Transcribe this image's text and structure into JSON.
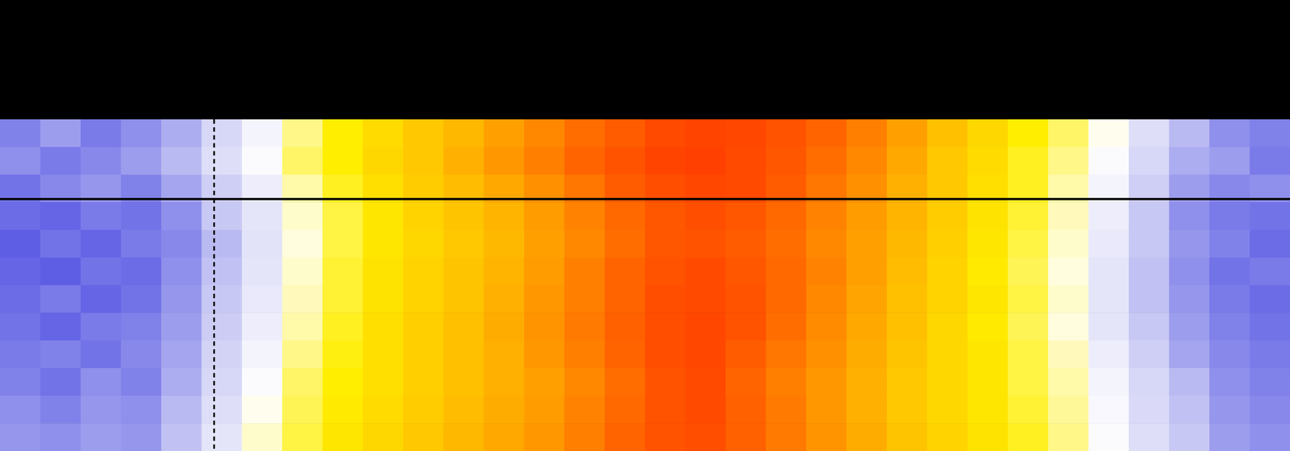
{
  "chart_data": {
    "type": "heatmap",
    "tick_labels": false,
    "zlim": [
      0,
      100
    ],
    "z": [
      [
        10,
        14,
        9,
        12,
        16,
        24,
        32,
        42,
        50,
        55,
        60,
        64,
        70,
        76,
        82,
        86,
        90,
        92,
        91,
        88,
        84,
        78,
        70,
        62,
        56,
        50,
        44,
        36,
        26,
        18,
        12,
        10
      ],
      [
        12,
        9,
        11,
        14,
        18,
        26,
        34,
        44,
        50,
        56,
        60,
        66,
        72,
        78,
        84,
        88,
        92,
        93,
        90,
        87,
        82,
        76,
        68,
        60,
        55,
        48,
        42,
        34,
        24,
        16,
        14,
        9
      ],
      [
        8,
        11,
        13,
        10,
        15,
        22,
        30,
        40,
        48,
        54,
        59,
        63,
        68,
        74,
        80,
        86,
        89,
        91,
        90,
        86,
        80,
        74,
        66,
        60,
        54,
        48,
        40,
        32,
        22,
        14,
        11,
        12
      ],
      [
        7,
        6,
        9,
        8,
        12,
        20,
        28,
        38,
        46,
        52,
        57,
        61,
        65,
        71,
        77,
        83,
        87,
        89,
        87,
        83,
        77,
        71,
        65,
        59,
        53,
        47,
        39,
        30,
        20,
        12,
        9,
        8
      ],
      [
        5,
        8,
        6,
        9,
        11,
        18,
        27,
        37,
        46,
        52,
        56,
        60,
        64,
        70,
        76,
        82,
        87,
        88,
        86,
        82,
        76,
        70,
        64,
        58,
        52,
        46,
        38,
        29,
        20,
        13,
        10,
        7
      ],
      [
        6,
        5,
        8,
        7,
        12,
        19,
        28,
        38,
        47,
        53,
        57,
        61,
        65,
        71,
        78,
        84,
        88,
        90,
        87,
        83,
        77,
        70,
        63,
        57,
        51,
        45,
        37,
        28,
        19,
        12,
        8,
        9
      ],
      [
        7,
        9,
        6,
        8,
        13,
        20,
        29,
        39,
        47,
        53,
        57,
        61,
        66,
        72,
        78,
        84,
        89,
        90,
        88,
        83,
        76,
        69,
        62,
        57,
        52,
        46,
        38,
        28,
        19,
        13,
        9,
        7
      ],
      [
        8,
        6,
        9,
        10,
        14,
        21,
        30,
        40,
        48,
        54,
        58,
        62,
        67,
        73,
        79,
        85,
        89,
        91,
        88,
        82,
        75,
        68,
        62,
        56,
        51,
        45,
        37,
        28,
        20,
        14,
        10,
        8
      ],
      [
        9,
        10,
        8,
        11,
        15,
        23,
        32,
        42,
        49,
        54,
        58,
        62,
        66,
        72,
        78,
        84,
        89,
        91,
        86,
        80,
        74,
        67,
        61,
        56,
        52,
        46,
        39,
        30,
        22,
        15,
        11,
        9
      ],
      [
        10,
        8,
        12,
        10,
        16,
        24,
        34,
        44,
        50,
        54,
        58,
        62,
        66,
        70,
        76,
        82,
        88,
        90,
        84,
        78,
        72,
        66,
        60,
        56,
        52,
        46,
        40,
        32,
        24,
        18,
        12,
        10
      ],
      [
        12,
        10,
        13,
        12,
        18,
        26,
        36,
        45,
        51,
        55,
        59,
        63,
        67,
        71,
        77,
        83,
        88,
        90,
        85,
        79,
        72,
        66,
        60,
        56,
        52,
        47,
        41,
        33,
        25,
        19,
        13,
        11
      ],
      [
        13,
        12,
        14,
        13,
        19,
        28,
        38,
        46,
        52,
        56,
        60,
        64,
        68,
        72,
        78,
        84,
        88,
        89,
        85,
        79,
        73,
        67,
        61,
        57,
        53,
        48,
        42,
        34,
        26,
        20,
        14,
        12
      ]
    ]
  }
}
